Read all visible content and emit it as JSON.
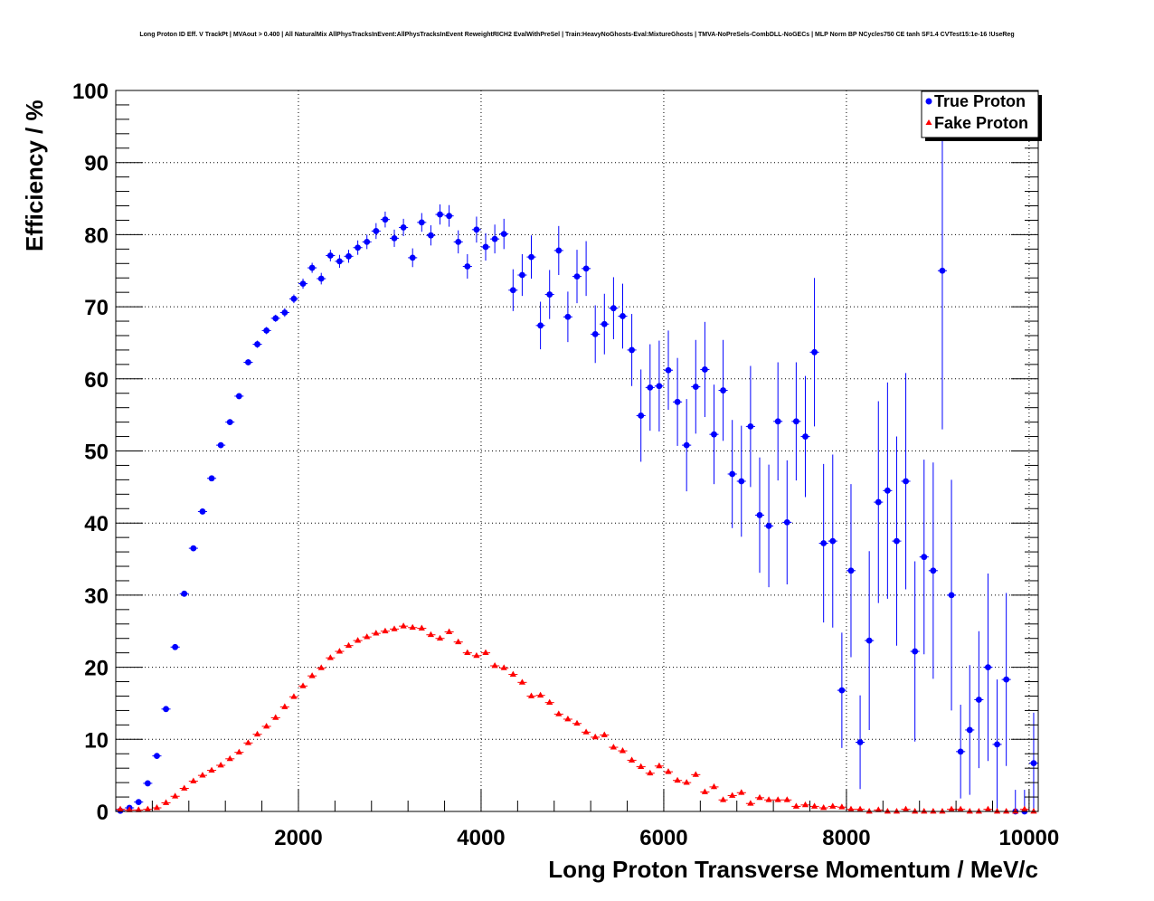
{
  "title": "Long Proton ID Eff. V TrackPt | MVAout > 0.400 | All NaturalMix AllPhysTracksInEvent:AllPhysTracksInEvent ReweightRICH2 EvalWithPreSel | Train:HeavyNoGhosts-Eval:MixtureGhosts | TMVA-NoPreSels-CombDLL-NoGECs | MLP Norm BP NCycles750 CE tanh SF1.4 CVTest15:1e-16 !UseReg",
  "chart_data": {
    "type": "scatter",
    "xlabel": "Long Proton Transverse Momentum / MeV/c",
    "ylabel": "Efficiency / %",
    "xlim": [
      0,
      10100
    ],
    "ylim": [
      0,
      100
    ],
    "x_ticks": [
      2000,
      4000,
      6000,
      8000,
      10000
    ],
    "y_ticks": [
      0,
      10,
      20,
      30,
      40,
      50,
      60,
      70,
      80,
      90,
      100
    ],
    "grid": true,
    "legend_position": "top-right",
    "colors": {
      "true_proton": "#0000ff",
      "fake_proton": "#ff0000"
    },
    "series": [
      {
        "name": "True Proton",
        "marker": "circle",
        "x": [
          50,
          150,
          250,
          350,
          450,
          550,
          650,
          750,
          850,
          950,
          1050,
          1150,
          1250,
          1350,
          1450,
          1550,
          1650,
          1750,
          1850,
          1950,
          2050,
          2150,
          2250,
          2350,
          2450,
          2550,
          2650,
          2750,
          2850,
          2950,
          3050,
          3150,
          3250,
          3350,
          3450,
          3550,
          3650,
          3750,
          3850,
          3950,
          4050,
          4150,
          4250,
          4350,
          4450,
          4550,
          4650,
          4750,
          4850,
          4950,
          5050,
          5150,
          5250,
          5350,
          5450,
          5550,
          5650,
          5750,
          5850,
          5950,
          6050,
          6150,
          6250,
          6350,
          6450,
          6550,
          6650,
          6750,
          6850,
          6950,
          7050,
          7150,
          7250,
          7350,
          7450,
          7550,
          7650,
          7750,
          7850,
          7950,
          8050,
          8150,
          8250,
          8350,
          8450,
          8550,
          8650,
          8750,
          8850,
          8950,
          9050,
          9150,
          9250,
          9350,
          9450,
          9550,
          9650,
          9750,
          9850,
          9950,
          10050
        ],
        "y": [
          0.1,
          0.5,
          1.3,
          3.9,
          7.7,
          14.2,
          22.8,
          30.2,
          36.5,
          41.6,
          46.2,
          50.8,
          54.0,
          57.6,
          62.3,
          64.8,
          66.7,
          68.4,
          69.2,
          71.1,
          73.2,
          75.4,
          73.9,
          77.1,
          76.3,
          77.0,
          78.2,
          79.0,
          80.5,
          82.1,
          79.5,
          81.0,
          76.8,
          81.7,
          79.9,
          82.8,
          82.6,
          79.0,
          75.6,
          80.7,
          78.3,
          79.4,
          80.1,
          72.3,
          74.4,
          76.9,
          67.4,
          71.7,
          77.8,
          68.6,
          74.2,
          75.3,
          66.2,
          67.6,
          69.8,
          68.7,
          64.0,
          54.9,
          58.8,
          59.0,
          61.2,
          56.8,
          50.8,
          58.9,
          61.3,
          52.3,
          58.4,
          46.8,
          45.8,
          53.4,
          41.1,
          39.6,
          54.1,
          40.1,
          54.1,
          52.0,
          63.7,
          37.2,
          37.5,
          16.8,
          33.4,
          9.6,
          23.7,
          42.9,
          44.5,
          37.5,
          45.8,
          22.2,
          35.3,
          33.4,
          75.0,
          30.0,
          8.3,
          11.3,
          15.5,
          20.0,
          9.3,
          18.3,
          0,
          0,
          6.7
        ],
        "y_err": [
          0.1,
          0.2,
          0.3,
          0.3,
          0.3,
          0.3,
          0.3,
          0.3,
          0.3,
          0.3,
          0.4,
          0.4,
          0.4,
          0.4,
          0.4,
          0.5,
          0.5,
          0.5,
          0.6,
          0.6,
          0.7,
          0.7,
          0.8,
          0.8,
          0.9,
          0.9,
          1.0,
          1.0,
          1.1,
          1.1,
          1.2,
          1.2,
          1.3,
          1.3,
          1.4,
          1.4,
          1.5,
          1.6,
          1.7,
          1.8,
          1.9,
          2.0,
          2.1,
          2.9,
          2.9,
          3.0,
          3.3,
          3.4,
          3.4,
          3.5,
          3.7,
          3.8,
          4.0,
          4.2,
          4.3,
          4.5,
          5.0,
          6.4,
          6.0,
          6.3,
          5.5,
          6.1,
          6.4,
          6.5,
          6.6,
          6.9,
          7.0,
          7.5,
          7.7,
          8.4,
          8.0,
          8.5,
          8.2,
          8.6,
          8.2,
          8.4,
          10.3,
          11.0,
          12.0,
          8.0,
          12.0,
          6.5,
          12.4,
          14.0,
          15.0,
          14.5,
          15.0,
          12.5,
          13.5,
          15.0,
          22.0,
          16.0,
          6.5,
          9.0,
          9.5,
          13.0,
          9.0,
          12.0,
          3.0,
          3.0,
          7.0
        ]
      },
      {
        "name": "Fake Proton",
        "marker": "triangle",
        "x": [
          50,
          150,
          250,
          350,
          450,
          550,
          650,
          750,
          850,
          950,
          1050,
          1150,
          1250,
          1350,
          1450,
          1550,
          1650,
          1750,
          1850,
          1950,
          2050,
          2150,
          2250,
          2350,
          2450,
          2550,
          2650,
          2750,
          2850,
          2950,
          3050,
          3150,
          3250,
          3350,
          3450,
          3550,
          3650,
          3750,
          3850,
          3950,
          4050,
          4150,
          4250,
          4350,
          4450,
          4550,
          4650,
          4750,
          4850,
          4950,
          5050,
          5150,
          5250,
          5350,
          5450,
          5550,
          5650,
          5750,
          5850,
          5950,
          6050,
          6150,
          6250,
          6350,
          6450,
          6550,
          6650,
          6750,
          6850,
          6950,
          7050,
          7150,
          7250,
          7350,
          7450,
          7550,
          7650,
          7750,
          7850,
          7950,
          8050,
          8150,
          8250,
          8350,
          8450,
          8550,
          8650,
          8750,
          8850,
          8950,
          9050,
          9150,
          9250,
          9350,
          9450,
          9550,
          9650,
          9750,
          9850,
          9950,
          10050
        ],
        "y": [
          0.3,
          0.2,
          0.2,
          0.3,
          0.5,
          1.2,
          2.1,
          3.2,
          4.2,
          5.0,
          5.7,
          6.4,
          7.3,
          8.2,
          9.5,
          10.7,
          11.8,
          13.0,
          14.5,
          15.9,
          17.4,
          18.8,
          19.9,
          21.3,
          22.2,
          23.0,
          23.7,
          24.2,
          24.7,
          25.0,
          25.3,
          25.7,
          25.5,
          25.4,
          24.5,
          24.0,
          24.9,
          23.5,
          22.0,
          21.6,
          22.0,
          20.2,
          19.9,
          19.0,
          17.9,
          16.0,
          16.1,
          15.1,
          13.5,
          12.8,
          12.2,
          11.0,
          10.3,
          10.6,
          8.9,
          8.4,
          7.1,
          6.2,
          5.3,
          6.3,
          5.5,
          4.3,
          4.0,
          5.1,
          2.7,
          3.4,
          1.6,
          2.2,
          2.6,
          1.1,
          1.9,
          1.6,
          1.6,
          1.6,
          0.7,
          0.9,
          0.7,
          0.5,
          0.7,
          0.6,
          0.3,
          0.3,
          0,
          0.2,
          0,
          0,
          0.3,
          0,
          0,
          0,
          0,
          0.3,
          0.3,
          0,
          0,
          0.3,
          0,
          0,
          0,
          0.3,
          0
        ],
        "y_err": [
          0.1,
          0.1,
          0.1,
          0.1,
          0.1,
          0.1,
          0.1,
          0.1,
          0.1,
          0.1,
          0.1,
          0.1,
          0.1,
          0.1,
          0.1,
          0.1,
          0.1,
          0.1,
          0.1,
          0.1,
          0.1,
          0.1,
          0.1,
          0.1,
          0.1,
          0.1,
          0.1,
          0.1,
          0.1,
          0.1,
          0.1,
          0.1,
          0.1,
          0.1,
          0.1,
          0.1,
          0.2,
          0.2,
          0.2,
          0.2,
          0.2,
          0.2,
          0.2,
          0.2,
          0.2,
          0.2,
          0.2,
          0.2,
          0.2,
          0.2,
          0.2,
          0.2,
          0.2,
          0.3,
          0.3,
          0.3,
          0.3,
          0.3,
          0.3,
          0.3,
          0.3,
          0.3,
          0.3,
          0.3,
          0.3,
          0.3,
          0.3,
          0.3,
          0.3,
          0.3,
          0.3,
          0.3,
          0.3,
          0.3,
          0.2,
          0.2,
          0.2,
          0.2,
          0.2,
          0.2,
          0.2,
          0.2,
          0.2,
          0.2,
          0.2,
          0.2,
          0.2,
          0.2,
          0.2,
          0.2,
          0.2,
          0.2,
          0.2,
          0.2,
          0.2,
          0.2,
          0.2,
          0.2,
          0.2,
          0.2,
          0.2
        ]
      }
    ]
  }
}
